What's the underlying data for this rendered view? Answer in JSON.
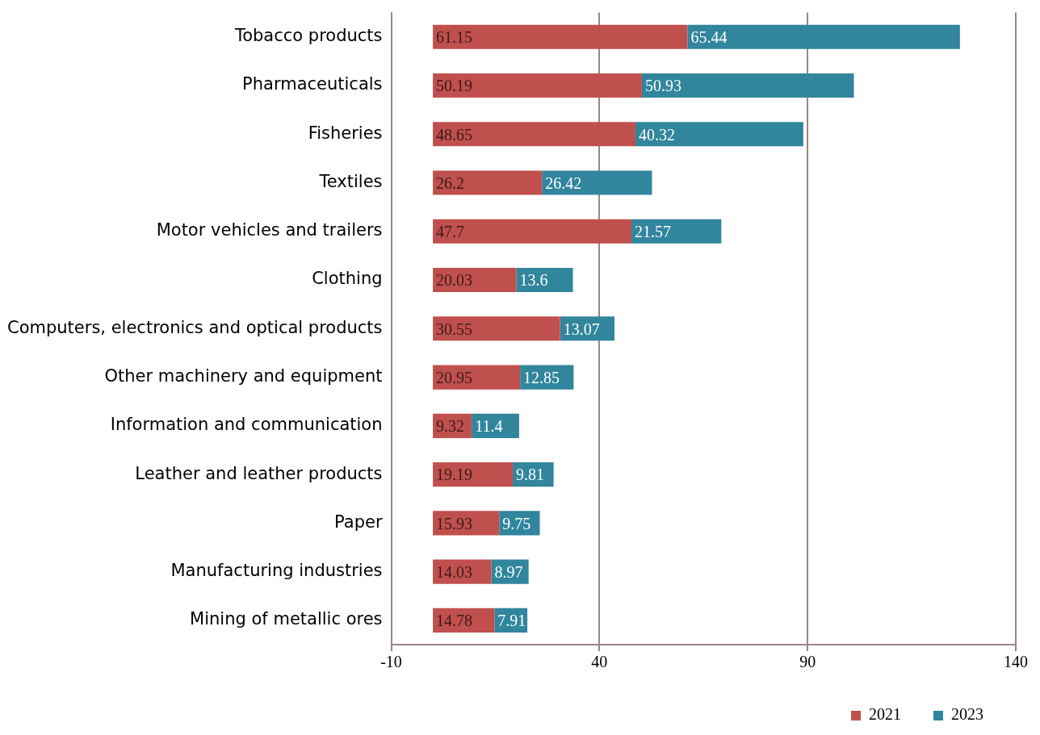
{
  "chart_data": {
    "type": "bar",
    "orientation": "horizontal",
    "stacked": true,
    "categories": [
      "Tobacco products",
      "Pharmaceuticals",
      "Fisheries",
      "Textiles",
      "Motor vehicles and trailers",
      "Clothing",
      "Computers, electronics and optical products",
      "Other machinery and equipment",
      "Information and communication",
      "Leather and leather products",
      "Paper",
      "Manufacturing industries",
      "Mining of metallic ores"
    ],
    "series": [
      {
        "name": "2021",
        "color": "#c0504d",
        "values": [
          61.15,
          50.19,
          48.65,
          26.2,
          47.7,
          20.03,
          30.55,
          20.95,
          9.32,
          19.19,
          15.93,
          14.03,
          14.78
        ]
      },
      {
        "name": "2023",
        "color": "#31859c",
        "values": [
          65.44,
          50.93,
          40.32,
          26.42,
          21.57,
          13.6,
          13.07,
          12.85,
          11.4,
          9.81,
          9.75,
          8.97,
          7.91
        ]
      }
    ],
    "xlim": [
      -10,
      140
    ],
    "xticks": [
      -10,
      40,
      90,
      140
    ],
    "grid": "x",
    "legend": "bottom",
    "data_labels": true
  }
}
